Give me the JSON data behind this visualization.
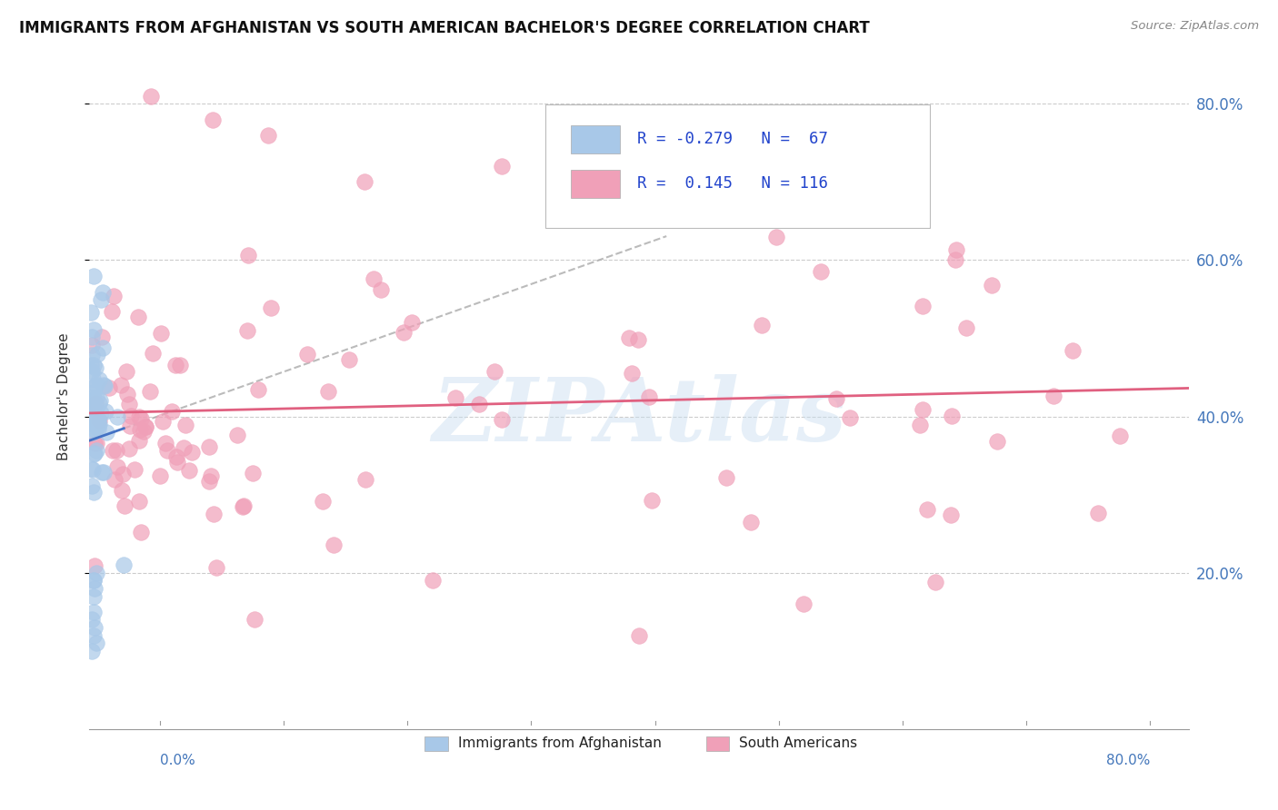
{
  "title": "IMMIGRANTS FROM AFGHANISTAN VS SOUTH AMERICAN BACHELOR'S DEGREE CORRELATION CHART",
  "source_text": "Source: ZipAtlas.com",
  "ylabel": "Bachelor's Degree",
  "watermark": "ZIPAtlas",
  "blue_color": "#A8C8E8",
  "pink_color": "#F0A0B8",
  "blue_line_color": "#4472C4",
  "pink_line_color": "#E06080",
  "r_blue": -0.279,
  "n_blue": 67,
  "r_pink": 0.145,
  "n_pink": 116,
  "xmin": 0.0,
  "xmax": 0.8,
  "ymin": 0.0,
  "ymax": 0.85,
  "yticks": [
    0.2,
    0.4,
    0.6,
    0.8
  ],
  "ytick_labels": [
    "20.0%",
    "40.0%",
    "60.0%",
    "80.0%"
  ],
  "xtick_labels": [
    "0.0%",
    "80.0%"
  ],
  "legend_r1": "R = -0.279",
  "legend_n1": "N =  67",
  "legend_r2": "R =  0.145",
  "legend_n2": "N = 116",
  "bottom_legend_left": "Immigrants from Afghanistan",
  "bottom_legend_right": "South Americans"
}
